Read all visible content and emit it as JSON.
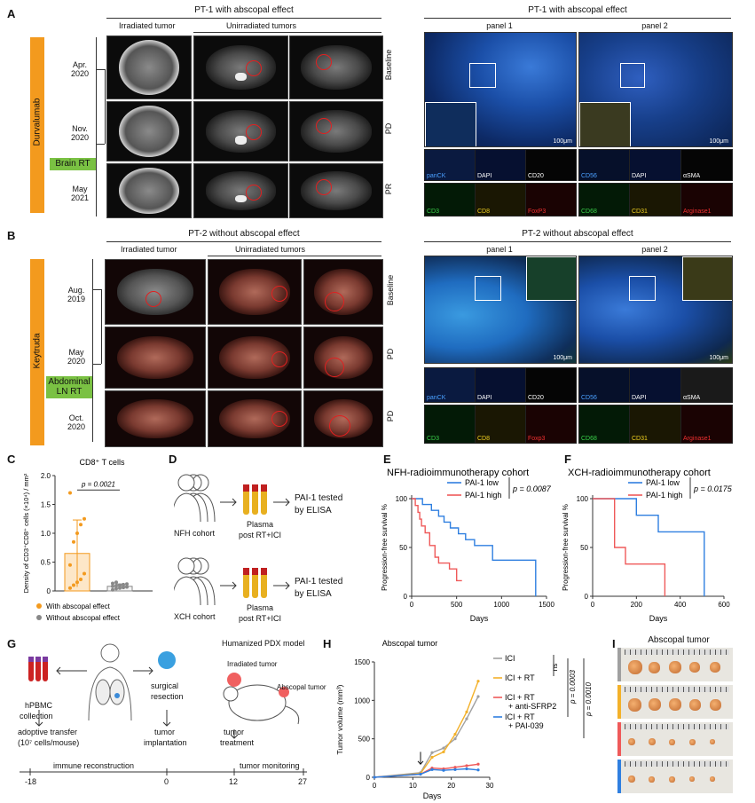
{
  "panel_labels": {
    "a": "A",
    "b": "B",
    "c": "C",
    "d": "D",
    "e": "E",
    "f": "F",
    "g": "G",
    "h": "H",
    "i": "I"
  },
  "panelA": {
    "title_left": "PT-1 with abscopal effect",
    "irradiated": "Irradiated tumor",
    "unirradiated": "Unirradiated tumors",
    "drug": "Durvalumab",
    "dates": [
      "Apr.\n2020",
      "Nov.\n2020",
      "May\n2021"
    ],
    "rt": "Brain RT",
    "states": [
      "Baseline",
      "PD",
      "PR"
    ],
    "title_right": "PT-1 with abscopal effect",
    "panel1": "panel 1",
    "panel2": "panel 2",
    "scale": "100μm",
    "markers1": [
      "panCK",
      "DAPI",
      "CD20",
      "CD3",
      "CD8",
      "FoxP3"
    ],
    "markers2": [
      "CD56",
      "DAPI",
      "αSMA",
      "CD68",
      "CD31",
      "Arginase1"
    ]
  },
  "panelB": {
    "title_left": "PT-2 without abscopal effect",
    "irradiated": "Irradiated tumor",
    "unirradiated": "Unirradiated tumors",
    "drug": "Keytruda",
    "dates": [
      "Aug.\n2019",
      "May\n2020",
      "Oct.\n2020"
    ],
    "rt": "Abdominal LN RT",
    "states": [
      "Baseline",
      "PD",
      "PD"
    ],
    "title_right": "PT-2 without abscopal effect",
    "panel1": "panel 1",
    "panel2": "panel 2",
    "scale": "100μm",
    "markers1": [
      "panCK",
      "DAPI",
      "CD20",
      "CD3",
      "CD8",
      "Foxp3"
    ],
    "markers2": [
      "CD56",
      "DAPI",
      "αSMA",
      "CD68",
      "CD31",
      "Arginase1"
    ]
  },
  "panelD": {
    "cohort1": "NFH cohort",
    "cohort2": "XCH cohort",
    "plasma": "Plasma",
    "post": "post RT+ICI",
    "tested": "PAI-1 tested",
    "elisa": "by ELISA"
  },
  "panelG": {
    "hpbmc": "hPBMC",
    "collection": "collection",
    "surgical": "surgical",
    "resection": "resection",
    "pdx": "Humanized PDX model",
    "irr_tumor": "Irradiated tumor",
    "absc_tumor": "Abscopal tumor",
    "adoptive": "adoptive transfer",
    "cells": "(10⁷ cells/mouse)",
    "tumor": "tumor",
    "implantation": "implantation",
    "treatment": "treatment",
    "immune": "immune reconstruction",
    "monitoring": "tumor monitoring",
    "ticks": [
      "-18",
      "0",
      "12",
      "27"
    ]
  },
  "panelI": {
    "title": "Abscopal tumor"
  },
  "chart_data": [
    {
      "id": "C",
      "type": "bar",
      "title": "CD8⁺ T cells",
      "ylabel": "Density of CD3⁺CD8⁺ cells (×10⁴) / mm²",
      "ylim": [
        0,
        2.0
      ],
      "yticks": [
        "0",
        "0.5",
        "1.0",
        "1.5",
        "2.0"
      ],
      "categories": [
        "With abscopal effect",
        "Without abscopal effect"
      ],
      "series": [
        {
          "name": "With abscopal effect",
          "mean": 0.65,
          "error": 0.58,
          "color": "#f39a1e",
          "points": [
            0.05,
            0.1,
            0.15,
            0.2,
            0.3,
            0.45,
            0.85,
            1.0,
            1.15,
            1.25,
            1.7
          ]
        },
        {
          "name": "Without abscopal effect",
          "mean": 0.08,
          "error": 0.04,
          "color": "#888888",
          "points": [
            0.02,
            0.04,
            0.05,
            0.06,
            0.07,
            0.08,
            0.09,
            0.1,
            0.11,
            0.12,
            0.13,
            0.15
          ]
        }
      ],
      "pvalue": "p = 0.0021",
      "legend": [
        "With abscopal effect",
        "Without abscopal effect"
      ]
    },
    {
      "id": "E",
      "type": "line",
      "title": "NFH-radioimmunotherapy cohort",
      "xlabel": "Days",
      "ylabel": "Progression-free survival %",
      "xlim": [
        0,
        1500
      ],
      "ylim": [
        0,
        100
      ],
      "xticks": [
        "0",
        "500",
        "1000",
        "1500"
      ],
      "yticks": [
        "0",
        "50",
        "100"
      ],
      "series": [
        {
          "name": "PAI-1 low",
          "color": "#2f7fe0",
          "steps": [
            [
              0,
              100
            ],
            [
              120,
              100
            ],
            [
              120,
              94
            ],
            [
              220,
              94
            ],
            [
              220,
              88
            ],
            [
              300,
              88
            ],
            [
              300,
              82
            ],
            [
              360,
              82
            ],
            [
              360,
              76
            ],
            [
              430,
              76
            ],
            [
              430,
              70
            ],
            [
              520,
              70
            ],
            [
              520,
              64
            ],
            [
              600,
              64
            ],
            [
              600,
              58
            ],
            [
              700,
              58
            ],
            [
              700,
              52
            ],
            [
              900,
              52
            ],
            [
              900,
              37
            ],
            [
              1380,
              37
            ],
            [
              1380,
              0
            ]
          ]
        },
        {
          "name": "PAI-1 high",
          "color": "#ef5a5a",
          "steps": [
            [
              0,
              100
            ],
            [
              40,
              100
            ],
            [
              40,
              93
            ],
            [
              70,
              93
            ],
            [
              70,
              86
            ],
            [
              90,
              86
            ],
            [
              90,
              79
            ],
            [
              110,
              79
            ],
            [
              110,
              72
            ],
            [
              150,
              72
            ],
            [
              150,
              65
            ],
            [
              200,
              65
            ],
            [
              200,
              52
            ],
            [
              260,
              52
            ],
            [
              260,
              40
            ],
            [
              300,
              40
            ],
            [
              300,
              34
            ],
            [
              420,
              34
            ],
            [
              420,
              28
            ],
            [
              500,
              28
            ],
            [
              500,
              16
            ],
            [
              560,
              16
            ]
          ]
        }
      ],
      "pvalue": "p = 0.0087"
    },
    {
      "id": "F",
      "type": "line",
      "title": "XCH-radioimmunotherapy cohort",
      "xlabel": "Days",
      "ylabel": "Progression-free survival %",
      "xlim": [
        0,
        600
      ],
      "ylim": [
        0,
        100
      ],
      "xticks": [
        "0",
        "200",
        "400",
        "600"
      ],
      "yticks": [
        "0",
        "50",
        "100"
      ],
      "series": [
        {
          "name": "PAI-1 low",
          "color": "#2f7fe0",
          "steps": [
            [
              0,
              100
            ],
            [
              200,
              100
            ],
            [
              200,
              83
            ],
            [
              300,
              83
            ],
            [
              300,
              66
            ],
            [
              510,
              66
            ],
            [
              510,
              0
            ]
          ]
        },
        {
          "name": "PAI-1 high",
          "color": "#ef5a5a",
          "steps": [
            [
              0,
              100
            ],
            [
              100,
              100
            ],
            [
              100,
              50
            ],
            [
              150,
              50
            ],
            [
              150,
              33
            ],
            [
              330,
              33
            ],
            [
              330,
              0
            ]
          ]
        }
      ],
      "pvalue": "p = 0.0175"
    },
    {
      "id": "H",
      "type": "line",
      "title": "Abscopal tumor",
      "xlabel": "Days",
      "ylabel": "Tumor volume (mm³)",
      "xlim": [
        0,
        30
      ],
      "ylim": [
        0,
        1500
      ],
      "xticks": [
        "0",
        "10",
        "20",
        "30"
      ],
      "yticks": [
        "0",
        "500",
        "1000",
        "1500"
      ],
      "series": [
        {
          "name": "ICI",
          "color": "#a0a0a0",
          "x": [
            0,
            12,
            15,
            18,
            21,
            24,
            27
          ],
          "y": [
            0,
            60,
            320,
            380,
            500,
            760,
            1050
          ]
        },
        {
          "name": "ICI + RT",
          "color": "#f3b12a",
          "x": [
            0,
            12,
            15,
            18,
            21,
            24,
            27
          ],
          "y": [
            0,
            50,
            260,
            330,
            560,
            850,
            1250
          ]
        },
        {
          "name": "ICI + RT + anti-SFRP2",
          "color": "#ef5a5a",
          "x": [
            0,
            12,
            15,
            18,
            21,
            24,
            27
          ],
          "y": [
            0,
            40,
            120,
            110,
            130,
            150,
            170
          ]
        },
        {
          "name": "ICI + RT + PAI-039",
          "color": "#2f7fe0",
          "x": [
            0,
            12,
            15,
            18,
            21,
            24,
            27
          ],
          "y": [
            0,
            40,
            100,
            90,
            100,
            110,
            95
          ]
        }
      ],
      "annotations": [
        "ns",
        "p = 0.0003",
        "p = 0.0010"
      ]
    }
  ]
}
